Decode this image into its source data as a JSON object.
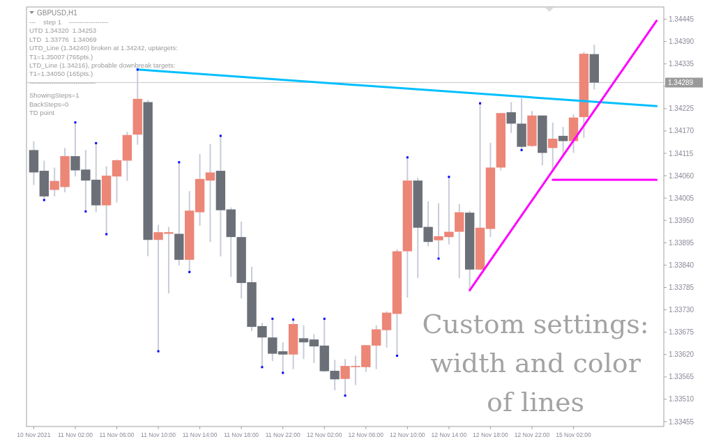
{
  "chart_data": {
    "type": "candlestick",
    "title": "GBPUSD,H1",
    "categories": [
      "10 Nov 2021",
      null,
      null,
      null,
      "11 Nov 02:00",
      null,
      null,
      null,
      "11 Nov 06:00",
      null,
      null,
      null,
      "11 Nov 10:00",
      null,
      null,
      null,
      "11 Nov 14:00",
      null,
      null,
      null,
      "11 Nov 18:00",
      null,
      null,
      null,
      "11 Nov 22:00",
      null,
      null,
      null,
      "12 Nov 02:00",
      null,
      null,
      null,
      "12 Nov 06:00",
      null,
      null,
      null,
      "12 Nov 10:00",
      null,
      null,
      null,
      "12 Nov 14:00",
      null,
      null,
      null,
      "12 Nov 18:00",
      null,
      null,
      null,
      "12 Nov 22:00",
      null,
      null,
      null,
      "15 Nov 02:00",
      null,
      null,
      null,
      null,
      null,
      null,
      null,
      null
    ],
    "ohlc": [
      [
        1.34123,
        1.34145,
        1.34037,
        1.34068
      ],
      [
        1.34072,
        1.34097,
        1.34,
        1.34009
      ],
      [
        1.34025,
        1.3408,
        1.34009,
        1.34047
      ],
      [
        1.34032,
        1.34128,
        1.34019,
        1.34108
      ],
      [
        1.34108,
        1.34191,
        1.34058,
        1.34073
      ],
      [
        1.34075,
        1.34123,
        1.33972,
        1.34048
      ],
      [
        1.3405,
        1.3414,
        1.3397,
        1.33987
      ],
      [
        1.33987,
        1.34083,
        1.33916,
        1.3406
      ],
      [
        1.34058,
        1.341,
        1.33994,
        1.34098
      ],
      [
        1.34097,
        1.34168,
        1.34047,
        1.3416
      ],
      [
        1.34161,
        1.34321,
        1.34136,
        1.34249
      ],
      [
        1.34241,
        1.34246,
        1.33862,
        1.33902
      ],
      [
        1.33902,
        1.33939,
        1.33628,
        1.33921
      ],
      [
        1.33917,
        1.33934,
        1.3377,
        1.33921
      ],
      [
        1.33917,
        1.34093,
        1.33839,
        1.33853
      ],
      [
        1.33853,
        1.34022,
        1.33823,
        1.33974
      ],
      [
        1.3397,
        1.34113,
        1.33937,
        1.34052
      ],
      [
        1.34048,
        1.34138,
        1.33897,
        1.34068
      ],
      [
        1.34072,
        1.34158,
        1.33861,
        1.33975
      ],
      [
        1.33977,
        1.33982,
        1.33811,
        1.33909
      ],
      [
        1.33909,
        1.33947,
        1.33758,
        1.33796
      ],
      [
        1.33798,
        1.33836,
        1.33678,
        1.33688
      ],
      [
        1.3369,
        1.33698,
        1.33589,
        1.33662
      ],
      [
        1.33662,
        1.33708,
        1.33604,
        1.33622
      ],
      [
        1.33628,
        1.3365,
        1.33575,
        1.3362
      ],
      [
        1.3362,
        1.33706,
        1.33584,
        1.33695
      ],
      [
        1.3366,
        1.33692,
        1.33609,
        1.3365
      ],
      [
        1.33657,
        1.3367,
        1.33599,
        1.3364
      ],
      [
        1.33642,
        1.33708,
        1.33577,
        1.33579
      ],
      [
        1.3358,
        1.33607,
        1.33532,
        1.33559
      ],
      [
        1.3356,
        1.33609,
        1.33519,
        1.33592
      ],
      [
        1.33589,
        1.33617,
        1.33545,
        1.33592
      ],
      [
        1.33589,
        1.33643,
        1.33577,
        1.33643
      ],
      [
        1.33642,
        1.33692,
        1.33584,
        1.33682
      ],
      [
        1.3368,
        1.33726,
        1.33637,
        1.33723
      ],
      [
        1.3372,
        1.33879,
        1.33617,
        1.33874
      ],
      [
        1.33874,
        1.34105,
        1.3376,
        1.34048
      ],
      [
        1.34048,
        1.34055,
        1.33808,
        1.33932
      ],
      [
        1.33934,
        1.33997,
        1.33886,
        1.33897
      ],
      [
        1.33901,
        1.33992,
        1.33856,
        1.33911
      ],
      [
        1.33909,
        1.34057,
        1.33891,
        1.33922
      ],
      [
        1.33922,
        1.3399,
        1.33808,
        1.3397
      ],
      [
        1.33969,
        1.33974,
        1.33778,
        1.33829
      ],
      [
        1.33829,
        1.34238,
        1.33828,
        1.33932
      ],
      [
        1.33929,
        1.34141,
        1.33909,
        1.3408
      ],
      [
        1.3408,
        1.34214,
        1.34073,
        1.34214
      ],
      [
        1.34216,
        1.34241,
        1.34165,
        1.34188
      ],
      [
        1.34188,
        1.34251,
        1.34123,
        1.34131
      ],
      [
        1.34133,
        1.34219,
        1.34131,
        1.34208
      ],
      [
        1.34208,
        1.34208,
        1.34085,
        1.34116
      ],
      [
        1.34128,
        1.34191,
        1.34075,
        1.34151
      ],
      [
        1.34158,
        1.3418,
        1.34113,
        1.34145
      ],
      [
        1.34145,
        1.34211,
        1.34116,
        1.34203
      ],
      [
        1.34204,
        1.34364,
        1.34153,
        1.3436
      ],
      [
        1.34359,
        1.34382,
        1.34272,
        1.34289
      ],
      null,
      null,
      null,
      null,
      null,
      null
    ],
    "colors": [
      "#6b7078",
      "#6b7078",
      "#ec8677",
      "#ec8677",
      "#6b7078",
      "#6b7078",
      "#6b7078",
      "#ec8677",
      "#ec8677",
      "#ec8677",
      "#ec8677",
      "#6b7078",
      "#ec8677",
      "#ec8677",
      "#6b7078",
      "#ec8677",
      "#ec8677",
      "#ec8677",
      "#6b7078",
      "#6b7078",
      "#6b7078",
      "#6b7078",
      "#6b7078",
      "#6b7078",
      "#6b7078",
      "#ec8677",
      "#6b7078",
      "#6b7078",
      "#6b7078",
      "#6b7078",
      "#ec8677",
      "#ec8677",
      "#ec8677",
      "#ec8677",
      "#ec8677",
      "#ec8677",
      "#ec8677",
      "#6b7078",
      "#6b7078",
      "#ec8677",
      "#ec8677",
      "#ec8677",
      "#6b7078",
      "#ec8677",
      "#ec8677",
      "#ec8677",
      "#6b7078",
      "#6b7078",
      "#ec8677",
      "#6b7078",
      "#ec8677",
      "#6b7078",
      "#ec8677",
      "#ec8677",
      "#6b7078",
      null,
      null,
      null,
      null,
      null,
      null
    ],
    "series": [
      {
        "type": "line",
        "color": "#00bfff",
        "values": [
          null,
          null,
          null,
          null,
          null,
          null,
          null,
          null,
          null,
          null,
          1.34321,
          null,
          null,
          null,
          null,
          null,
          null,
          null,
          null,
          null,
          null,
          null,
          null,
          null,
          null,
          null,
          null,
          null,
          null,
          null,
          null,
          null,
          null,
          null,
          null,
          null,
          null,
          null,
          null,
          null,
          null,
          null,
          null,
          null,
          null,
          null,
          null,
          null,
          null,
          null,
          null,
          null,
          null,
          null,
          null,
          null,
          null,
          null,
          null,
          null,
          1.34231
        ]
      },
      {
        "type": "line",
        "color": "#ff00ff",
        "values": [
          null,
          null,
          null,
          null,
          null,
          null,
          null,
          null,
          null,
          null,
          null,
          null,
          null,
          null,
          null,
          null,
          null,
          null,
          null,
          null,
          null,
          null,
          null,
          null,
          null,
          null,
          null,
          null,
          null,
          null,
          null,
          null,
          null,
          null,
          null,
          null,
          null,
          null,
          null,
          null,
          null,
          null,
          1.33778,
          null,
          null,
          null,
          null,
          null,
          null,
          null,
          null,
          null,
          null,
          null,
          null,
          null,
          null,
          null,
          null,
          null,
          1.34441
        ]
      },
      {
        "type": "line",
        "color": "#ff00ff",
        "values": [
          null,
          null,
          null,
          null,
          null,
          null,
          null,
          null,
          null,
          null,
          null,
          null,
          null,
          null,
          null,
          null,
          null,
          null,
          null,
          null,
          null,
          null,
          null,
          null,
          null,
          null,
          null,
          null,
          null,
          null,
          null,
          null,
          null,
          null,
          null,
          null,
          null,
          null,
          null,
          null,
          null,
          null,
          null,
          null,
          null,
          null,
          null,
          null,
          null,
          null,
          1.3405,
          null,
          null,
          null,
          null,
          null,
          null,
          null,
          null,
          null,
          1.3405
        ]
      },
      {
        "type": "scatter",
        "color": "#0000ff",
        "marker": "square",
        "values": [
          null,
          1.34,
          null,
          null,
          1.34191,
          1.33972,
          1.3414,
          1.33916,
          null,
          null,
          1.34321,
          null,
          1.33628,
          null,
          1.34093,
          1.33823,
          null,
          null,
          1.34158,
          null,
          null,
          null,
          1.33589,
          1.33708,
          1.33575,
          1.33706,
          null,
          null,
          1.33708,
          null,
          1.33519,
          null,
          null,
          null,
          null,
          1.33617,
          1.34105,
          null,
          null,
          1.33856,
          1.34057,
          null,
          null,
          1.34238,
          null,
          null,
          null,
          1.34123,
          null,
          null,
          null,
          null,
          null,
          null,
          null,
          null,
          null,
          null,
          null,
          null,
          null
        ]
      }
    ],
    "ylim": [
      1.33443,
      1.34475
    ],
    "yticks": [
      1.34445,
      {
        "value": 1.3439,
        "label": "1.34390"
      },
      1.34335,
      {
        "value": 1.3428,
        "label": null
      },
      1.34225,
      {
        "value": 1.3417,
        "label": "1.34170"
      },
      1.34115,
      {
        "value": 1.3406,
        "label": "1.34060"
      },
      1.34005,
      {
        "value": 1.3395,
        "label": "1.33950"
      },
      1.33895,
      {
        "value": 1.3384,
        "label": "1.33840"
      },
      1.33785,
      {
        "value": 1.3373,
        "label": "1.33730"
      },
      1.33675,
      {
        "value": 1.3362,
        "label": "1.33620"
      },
      1.33565,
      {
        "value": 1.3351,
        "label": "1.33510"
      },
      1.33455
    ],
    "ref_lines": [
      {
        "axis": "y",
        "value": 1.34289,
        "label": "1.34289",
        "color": "#c8c8c8"
      }
    ],
    "annotations": [
      "---    step 1    ------------------",
      "UTD 1.34320  1.34253",
      "LTD  1.33776  1.34069",
      "UTD_Line (1.34240) broken at 1.34242, uptargets:",
      "T1=1.35007 (765pts.)",
      "LTD_Line (1.34216), probable downbreak targets:",
      "T1=1.34050 (165pts.)",
      "------------------------------",
      "ShowingSteps=1",
      "BackSteps=0",
      "TD point",
      "Custom settings: width and color of lines"
    ]
  }
}
